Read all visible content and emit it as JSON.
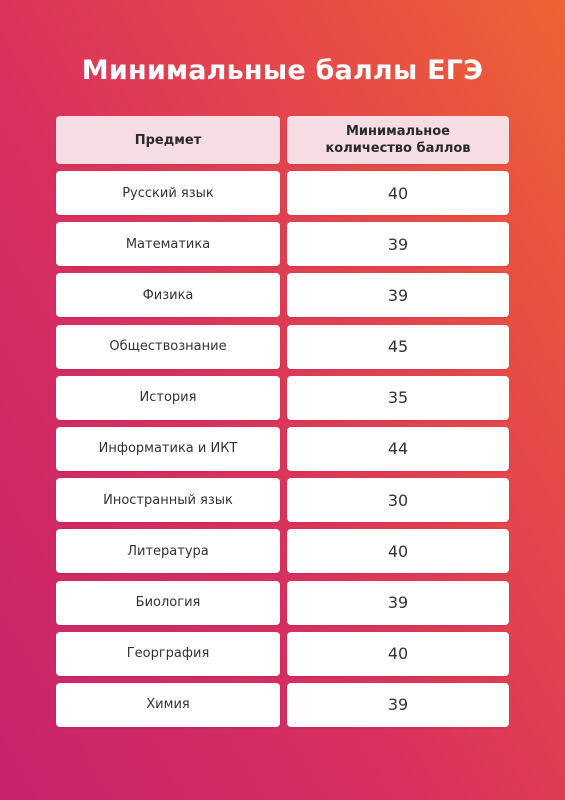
{
  "title": "Минимальные баллы ЕГЭ",
  "table": {
    "headers": {
      "subject": "Предмет",
      "score_line1": "Минимальное",
      "score_line2": "количество баллов"
    },
    "rows": [
      {
        "subject": "Русский язык",
        "score": "40"
      },
      {
        "subject": "Математика",
        "score": "39"
      },
      {
        "subject": "Физика",
        "score": "39"
      },
      {
        "subject": "Обществознание",
        "score": "45"
      },
      {
        "subject": "История",
        "score": "35"
      },
      {
        "subject": "Информатика и ИКТ",
        "score": "44"
      },
      {
        "subject": "Иностранный язык",
        "score": "30"
      },
      {
        "subject": "Литература",
        "score": "40"
      },
      {
        "subject": "Биология",
        "score": "39"
      },
      {
        "subject": "Георграфия",
        "score": "40"
      },
      {
        "subject": "Химия",
        "score": "39"
      }
    ]
  },
  "colors": {
    "gradient_start": "#c7236d",
    "gradient_end": "#ee6233",
    "header_bg": "#f6dde4",
    "cell_bg": "#ffffff"
  }
}
